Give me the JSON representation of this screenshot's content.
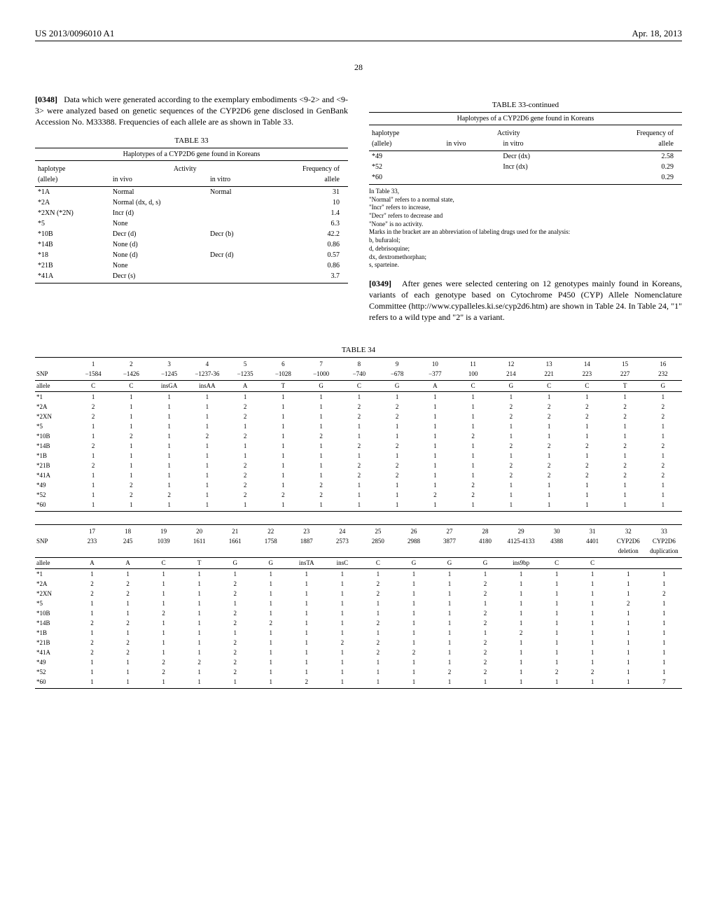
{
  "header": {
    "left": "US 2013/0096010 A1",
    "right": "Apr. 18, 2013"
  },
  "page_number": "28",
  "para_0348": {
    "num": "[0348]",
    "text": "Data which were generated according to the exemplary embodiments <9-2> and <9-3> were analyzed based on genetic sequences of the CYP2D6 gene disclosed in GenBank Accession No. M33388. Frequencies of each allele are as shown in Table 33."
  },
  "table33": {
    "title": "TABLE 33",
    "caption": "Haplotypes of a CYP2D6 gene found in Koreans",
    "col_headers": {
      "haplotype": "haplotype",
      "activity": "Activity",
      "frequency": "Frequency of",
      "allele": "(allele)",
      "in_vivo": "in vivo",
      "in_vitro": "in vitro",
      "allele2": "allele"
    },
    "rows_left": [
      {
        "allele": "*1A",
        "vivo": "Normal",
        "vitro": "Normal",
        "freq": "31"
      },
      {
        "allele": "*2A",
        "vivo": "Normal (dx, d, s)",
        "vitro": "",
        "freq": "10"
      },
      {
        "allele": "*2XN (*2N)",
        "vivo": "Incr (d)",
        "vitro": "",
        "freq": "1.4"
      },
      {
        "allele": "*5",
        "vivo": "None",
        "vitro": "",
        "freq": "6.3"
      },
      {
        "allele": "*10B",
        "vivo": "Decr (d)",
        "vitro": "Decr (b)",
        "freq": "42.2"
      },
      {
        "allele": "*14B",
        "vivo": "None (d)",
        "vitro": "",
        "freq": "0.86"
      },
      {
        "allele": "*18",
        "vivo": "None (d)",
        "vitro": "Decr (d)",
        "freq": "0.57"
      },
      {
        "allele": "*21B",
        "vivo": "None",
        "vitro": "",
        "freq": "0.86"
      },
      {
        "allele": "*41A",
        "vivo": "Decr (s)",
        "vitro": "",
        "freq": "3.7"
      }
    ],
    "rows_right": [
      {
        "allele": "*49",
        "vivo": "",
        "vitro": "Decr (dx)",
        "freq": "2.58"
      },
      {
        "allele": "*52",
        "vivo": "",
        "vitro": "Incr (dx)",
        "freq": "0.29"
      },
      {
        "allele": "*60",
        "vivo": "",
        "vitro": "",
        "freq": "0.29"
      }
    ],
    "continued": "TABLE 33-continued",
    "footnotes": [
      "In Table 33,",
      "\"Normal\" refers to a normal state,",
      "\"Incr\" refers to increase,",
      "\"Decr\" refers to decrease and",
      "\"None\" is no activity.",
      "Marks in the bracket are an abbreviation of labeling drugs used for the analysis:",
      "b, bufuralol;",
      "d, debrisoquine;",
      "dx, dextromethorphan;",
      "s, sparteine."
    ]
  },
  "para_0349": {
    "num": "[0349]",
    "text": "After genes were selected centering on 12 genotypes mainly found in Koreans, variants of each genotype based on Cytochrome P450 (CYP) Allele Nomenclature Committee (http://www.cypalleles.ki.se/cyp2d6.htm) are shown in Table 24. In Table 24, \"1\" refers to a wild type and \"2\" is a variant."
  },
  "table34": {
    "title": "TABLE 34",
    "section1": {
      "snp_nums": [
        "1",
        "2",
        "3",
        "4",
        "5",
        "6",
        "7",
        "8",
        "9",
        "10",
        "11",
        "12",
        "13",
        "14",
        "15",
        "16"
      ],
      "snp_pos": [
        "−1584",
        "−1426",
        "−1245",
        "−1237-36",
        "−1235",
        "−1028",
        "−1000",
        "−740",
        "−678",
        "−377",
        "100",
        "214",
        "221",
        "223",
        "227",
        "232"
      ],
      "allele_row": [
        "C",
        "C",
        "insGA",
        "insAA",
        "A",
        "T",
        "G",
        "C",
        "G",
        "A",
        "C",
        "G",
        "C",
        "C",
        "T",
        "G"
      ],
      "rows": [
        {
          "n": "*1",
          "v": [
            "1",
            "1",
            "1",
            "1",
            "1",
            "1",
            "1",
            "1",
            "1",
            "1",
            "1",
            "1",
            "1",
            "1",
            "1",
            "1"
          ]
        },
        {
          "n": "*2A",
          "v": [
            "2",
            "1",
            "1",
            "1",
            "2",
            "1",
            "1",
            "2",
            "2",
            "1",
            "1",
            "2",
            "2",
            "2",
            "2",
            "2"
          ]
        },
        {
          "n": "*2XN",
          "v": [
            "2",
            "1",
            "1",
            "1",
            "2",
            "1",
            "1",
            "2",
            "2",
            "1",
            "1",
            "2",
            "2",
            "2",
            "2",
            "2"
          ]
        },
        {
          "n": "*5",
          "v": [
            "1",
            "1",
            "1",
            "1",
            "1",
            "1",
            "1",
            "1",
            "1",
            "1",
            "1",
            "1",
            "1",
            "1",
            "1",
            "1"
          ]
        },
        {
          "n": "*10B",
          "v": [
            "1",
            "2",
            "1",
            "2",
            "2",
            "1",
            "2",
            "1",
            "1",
            "1",
            "2",
            "1",
            "1",
            "1",
            "1",
            "1"
          ]
        },
        {
          "n": "*14B",
          "v": [
            "2",
            "1",
            "1",
            "1",
            "1",
            "1",
            "1",
            "2",
            "2",
            "1",
            "1",
            "2",
            "2",
            "2",
            "2",
            "2"
          ]
        },
        {
          "n": "*1B",
          "v": [
            "1",
            "1",
            "1",
            "1",
            "1",
            "1",
            "1",
            "1",
            "1",
            "1",
            "1",
            "1",
            "1",
            "1",
            "1",
            "1"
          ]
        },
        {
          "n": "*21B",
          "v": [
            "2",
            "1",
            "1",
            "1",
            "2",
            "1",
            "1",
            "2",
            "2",
            "1",
            "1",
            "2",
            "2",
            "2",
            "2",
            "2"
          ]
        },
        {
          "n": "*41A",
          "v": [
            "1",
            "1",
            "1",
            "1",
            "2",
            "1",
            "1",
            "2",
            "2",
            "1",
            "1",
            "2",
            "2",
            "2",
            "2",
            "2"
          ]
        },
        {
          "n": "*49",
          "v": [
            "1",
            "2",
            "1",
            "1",
            "2",
            "1",
            "2",
            "1",
            "1",
            "1",
            "2",
            "1",
            "1",
            "1",
            "1",
            "1"
          ]
        },
        {
          "n": "*52",
          "v": [
            "1",
            "2",
            "2",
            "1",
            "2",
            "2",
            "2",
            "1",
            "1",
            "2",
            "2",
            "1",
            "1",
            "1",
            "1",
            "1"
          ]
        },
        {
          "n": "*60",
          "v": [
            "1",
            "1",
            "1",
            "1",
            "1",
            "1",
            "1",
            "1",
            "1",
            "1",
            "1",
            "1",
            "1",
            "1",
            "1",
            "1"
          ]
        }
      ]
    },
    "section2": {
      "snp_nums": [
        "17",
        "18",
        "19",
        "20",
        "21",
        "22",
        "23",
        "24",
        "25",
        "26",
        "27",
        "28",
        "29",
        "30",
        "31",
        "32",
        "33"
      ],
      "snp_pos": [
        "233",
        "245",
        "1039",
        "1611",
        "1661",
        "1758",
        "1887",
        "2573",
        "2850",
        "2988",
        "3877",
        "4180",
        "4125-4133",
        "4388",
        "4401",
        "CYP2D6",
        "CYP2D6"
      ],
      "snp_pos2": [
        "",
        "",
        "",
        "",
        "",
        "",
        "",
        "",
        "",
        "",
        "",
        "",
        "",
        "",
        "",
        "deletion",
        "duplication"
      ],
      "allele_row": [
        "A",
        "A",
        "C",
        "T",
        "G",
        "G",
        "insTA",
        "insC",
        "C",
        "G",
        "G",
        "G",
        "ins9bp",
        "C",
        "C",
        "",
        ""
      ],
      "rows": [
        {
          "n": "*1",
          "v": [
            "1",
            "1",
            "1",
            "1",
            "1",
            "1",
            "1",
            "1",
            "1",
            "1",
            "1",
            "1",
            "1",
            "1",
            "1",
            "1",
            "1"
          ]
        },
        {
          "n": "*2A",
          "v": [
            "2",
            "2",
            "1",
            "1",
            "2",
            "1",
            "1",
            "1",
            "2",
            "1",
            "1",
            "2",
            "1",
            "1",
            "1",
            "1",
            "1"
          ]
        },
        {
          "n": "*2XN",
          "v": [
            "2",
            "2",
            "1",
            "1",
            "2",
            "1",
            "1",
            "1",
            "2",
            "1",
            "1",
            "2",
            "1",
            "1",
            "1",
            "1",
            "2"
          ]
        },
        {
          "n": "*5",
          "v": [
            "1",
            "1",
            "1",
            "1",
            "1",
            "1",
            "1",
            "1",
            "1",
            "1",
            "1",
            "1",
            "1",
            "1",
            "1",
            "2",
            "1"
          ]
        },
        {
          "n": "*10B",
          "v": [
            "1",
            "1",
            "2",
            "1",
            "2",
            "1",
            "1",
            "1",
            "1",
            "1",
            "1",
            "2",
            "1",
            "1",
            "1",
            "1",
            "1"
          ]
        },
        {
          "n": "*14B",
          "v": [
            "2",
            "2",
            "1",
            "1",
            "2",
            "2",
            "1",
            "1",
            "2",
            "1",
            "1",
            "2",
            "1",
            "1",
            "1",
            "1",
            "1"
          ]
        },
        {
          "n": "*1B",
          "v": [
            "1",
            "1",
            "1",
            "1",
            "1",
            "1",
            "1",
            "1",
            "1",
            "1",
            "1",
            "1",
            "2",
            "1",
            "1",
            "1",
            "1"
          ]
        },
        {
          "n": "*21B",
          "v": [
            "2",
            "2",
            "1",
            "1",
            "2",
            "1",
            "1",
            "2",
            "2",
            "1",
            "1",
            "2",
            "1",
            "1",
            "1",
            "1",
            "1"
          ]
        },
        {
          "n": "*41A",
          "v": [
            "2",
            "2",
            "1",
            "1",
            "2",
            "1",
            "1",
            "1",
            "2",
            "2",
            "1",
            "2",
            "1",
            "1",
            "1",
            "1",
            "1"
          ]
        },
        {
          "n": "*49",
          "v": [
            "1",
            "1",
            "2",
            "2",
            "2",
            "1",
            "1",
            "1",
            "1",
            "1",
            "1",
            "2",
            "1",
            "1",
            "1",
            "1",
            "1"
          ]
        },
        {
          "n": "*52",
          "v": [
            "1",
            "1",
            "2",
            "1",
            "2",
            "1",
            "1",
            "1",
            "1",
            "1",
            "2",
            "2",
            "1",
            "2",
            "2",
            "1",
            "1"
          ]
        },
        {
          "n": "*60",
          "v": [
            "1",
            "1",
            "1",
            "1",
            "1",
            "1",
            "2",
            "1",
            "1",
            "1",
            "1",
            "1",
            "1",
            "1",
            "1",
            "1",
            "7"
          ]
        }
      ]
    },
    "row_label_snp": "SNP",
    "row_label_allele": "allele"
  }
}
